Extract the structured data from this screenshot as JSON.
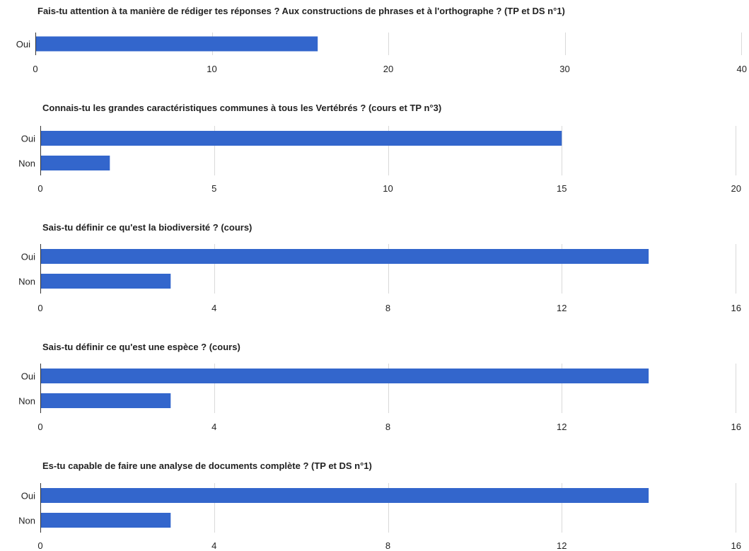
{
  "chart_data": [
    {
      "type": "bar",
      "orientation": "horizontal",
      "title": "Fais-tu attention à ta manière de rédiger tes réponses ? Aux constructions de phrases et à l'orthographe ? (TP et DS n°1)",
      "categories": [
        "Oui"
      ],
      "values": [
        16
      ],
      "xlim": [
        0,
        40
      ],
      "ticks": [
        0,
        10,
        20,
        30,
        40
      ],
      "grid": true,
      "color": "#3366cc"
    },
    {
      "type": "bar",
      "orientation": "horizontal",
      "title": "Connais-tu les grandes caractéristiques communes à tous les Vertébrés ? (cours et TP n°3)",
      "categories": [
        "Oui",
        "Non"
      ],
      "values": [
        15,
        2
      ],
      "xlim": [
        0,
        20
      ],
      "ticks": [
        0,
        5,
        10,
        15,
        20
      ],
      "grid": true,
      "color": "#3366cc"
    },
    {
      "type": "bar",
      "orientation": "horizontal",
      "title": "Sais-tu définir ce qu'est la biodiversité ? (cours)",
      "categories": [
        "Oui",
        "Non"
      ],
      "values": [
        14,
        3
      ],
      "xlim": [
        0,
        16
      ],
      "ticks": [
        0,
        4,
        8,
        12,
        16
      ],
      "grid": true,
      "color": "#3366cc"
    },
    {
      "type": "bar",
      "orientation": "horizontal",
      "title": "Sais-tu définir ce qu'est une espèce ? (cours)",
      "categories": [
        "Oui",
        "Non"
      ],
      "values": [
        14,
        3
      ],
      "xlim": [
        0,
        16
      ],
      "ticks": [
        0,
        4,
        8,
        12,
        16
      ],
      "grid": true,
      "color": "#3366cc"
    },
    {
      "type": "bar",
      "orientation": "horizontal",
      "title": "Es-tu capable de faire une analyse de documents complète ? (TP et DS n°1)",
      "categories": [
        "Oui",
        "Non"
      ],
      "values": [
        14,
        3
      ],
      "xlim": [
        0,
        16
      ],
      "ticks": [
        0,
        4,
        8,
        12,
        16
      ],
      "grid": true,
      "color": "#3366cc"
    }
  ]
}
